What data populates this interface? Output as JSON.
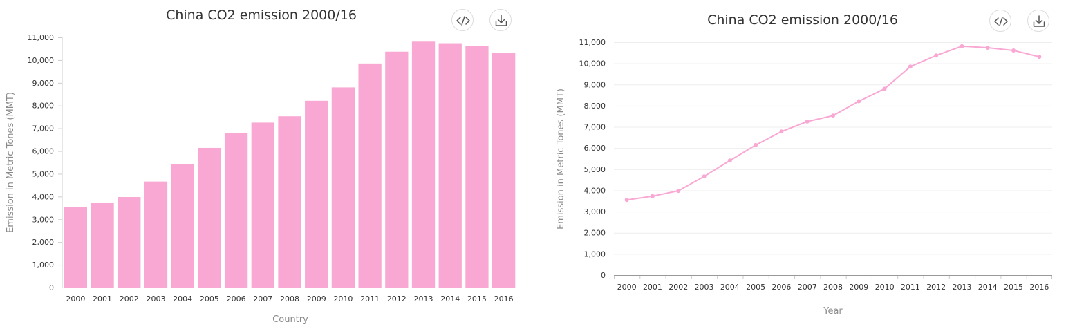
{
  "charts": [
    {
      "id": "left",
      "toolbar": {
        "embed_icon": "code-icon",
        "download_icon": "download-icon"
      },
      "chart_data": {
        "type": "bar",
        "title": "China CO2 emission 2000/16",
        "xlabel": "Country",
        "ylabel": "Emission in Metric Tones (MMT)",
        "categories": [
          "2000",
          "2001",
          "2002",
          "2003",
          "2004",
          "2005",
          "2006",
          "2007",
          "2008",
          "2009",
          "2010",
          "2011",
          "2012",
          "2013",
          "2014",
          "2015",
          "2016"
        ],
        "values": [
          3550,
          3730,
          3980,
          4660,
          5410,
          6140,
          6780,
          7250,
          7530,
          8210,
          8800,
          9850,
          10370,
          10810,
          10740,
          10610,
          10310
        ],
        "ylim": [
          0,
          11000
        ],
        "yticks": [
          0,
          1000,
          2000,
          3000,
          4000,
          5000,
          6000,
          7000,
          8000,
          9000,
          10000,
          11000
        ],
        "grid": false,
        "color": "#f9a8d4"
      }
    },
    {
      "id": "right",
      "toolbar": {
        "embed_icon": "code-icon",
        "download_icon": "download-icon"
      },
      "chart_data": {
        "type": "line",
        "title": "China CO2 emission 2000/16",
        "xlabel": "Year",
        "ylabel": "Emission in Metric Tones (MMT)",
        "categories": [
          "2000",
          "2001",
          "2002",
          "2003",
          "2004",
          "2005",
          "2006",
          "2007",
          "2008",
          "2009",
          "2010",
          "2011",
          "2012",
          "2013",
          "2014",
          "2015",
          "2016"
        ],
        "values": [
          3550,
          3730,
          3980,
          4660,
          5410,
          6140,
          6780,
          7250,
          7530,
          8210,
          8800,
          9850,
          10370,
          10810,
          10740,
          10610,
          10310
        ],
        "ylim": [
          0,
          11000
        ],
        "yticks": [
          0,
          1000,
          2000,
          3000,
          4000,
          5000,
          6000,
          7000,
          8000,
          9000,
          10000,
          11000
        ],
        "grid": true,
        "color": "#f9a8d4"
      }
    }
  ]
}
